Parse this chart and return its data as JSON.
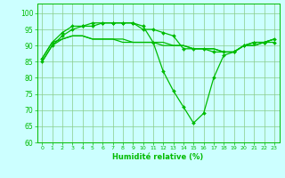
{
  "x": [
    0,
    1,
    2,
    3,
    4,
    5,
    6,
    7,
    8,
    9,
    10,
    11,
    12,
    13,
    14,
    15,
    16,
    17,
    18,
    19,
    20,
    21,
    22,
    23
  ],
  "line1_y": [
    85,
    90,
    93,
    95,
    96,
    96,
    97,
    97,
    97,
    97,
    96,
    91,
    82,
    76,
    71,
    66,
    69,
    80,
    87,
    88,
    90,
    91,
    91,
    91
  ],
  "line2_y": [
    86,
    91,
    94,
    96,
    96,
    97,
    97,
    97,
    97,
    97,
    95,
    95,
    94,
    93,
    89,
    89,
    89,
    88,
    88,
    88,
    90,
    91,
    91,
    92
  ],
  "line3_y": [
    86,
    91,
    92,
    93,
    93,
    92,
    92,
    92,
    92,
    91,
    91,
    91,
    90,
    90,
    90,
    89,
    89,
    89,
    88,
    88,
    90,
    90,
    91,
    92
  ],
  "line4_y": [
    85,
    90,
    92,
    93,
    93,
    92,
    92,
    92,
    91,
    91,
    91,
    91,
    91,
    90,
    90,
    89,
    89,
    89,
    88,
    88,
    90,
    90,
    91,
    92
  ],
  "line_color": "#00bb00",
  "bg_color": "#ccffff",
  "grid_color": "#88cc88",
  "xlabel": "Humidité relative (%)",
  "ylim": [
    60,
    103
  ],
  "yticks": [
    60,
    65,
    70,
    75,
    80,
    85,
    90,
    95,
    100
  ],
  "xlim": [
    -0.5,
    23.5
  ],
  "xticks": [
    0,
    1,
    2,
    3,
    4,
    5,
    6,
    7,
    8,
    9,
    10,
    11,
    12,
    13,
    14,
    15,
    16,
    17,
    18,
    19,
    20,
    21,
    22,
    23
  ],
  "xtick_labels": [
    "0",
    "1",
    "2",
    "3",
    "4",
    "5",
    "6",
    "7",
    "8",
    "9",
    "10",
    "11",
    "12",
    "13",
    "14",
    "15",
    "16",
    "17",
    "18",
    "19",
    "20",
    "21",
    "22",
    "23"
  ]
}
